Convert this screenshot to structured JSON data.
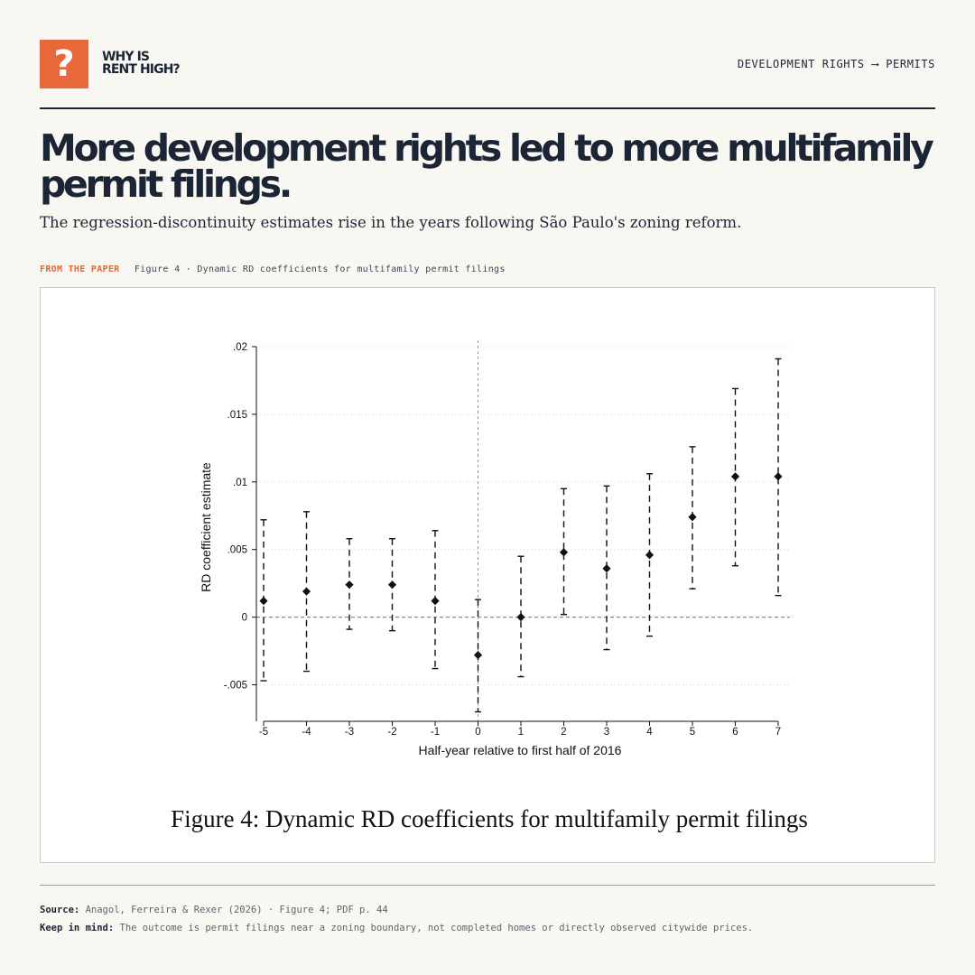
{
  "header": {
    "logo_mark": "?",
    "logo_line1": "WHY IS",
    "logo_line2": "RENT HIGH?",
    "breadcrumb": "DEVELOPMENT RIGHTS ⟶ PERMITS",
    "accent_color": "#e8683c",
    "ink_color": "#1c2536"
  },
  "headline": "More development rights led to more multifamily permit filings.",
  "subtitle": "The regression-discontinuity estimates rise in the years following São Paulo's zoning reform.",
  "source_line": {
    "tag": "FROM THE PAPER",
    "figure_ref": "Figure 4 · Dynamic RD coefficients for multifamily permit filings"
  },
  "chart_data": {
    "type": "scatter",
    "style": "point estimates with dashed confidence-interval bars",
    "marker": "diamond",
    "xlabel": "Half-year relative to first half of 2016",
    "ylabel": "RD coefficient estimate",
    "caption": "Figure 4: Dynamic RD coefficients for multifamily permit filings",
    "x_ticks": [
      "-5",
      "-4",
      "-3",
      "-2",
      "-1",
      "0",
      "1",
      "2",
      "3",
      "4",
      "5",
      "6",
      "7"
    ],
    "y_ticks": [
      {
        "value": -0.005,
        "label": "-.005"
      },
      {
        "value": 0,
        "label": "0"
      },
      {
        "value": 0.005,
        "label": ".005"
      },
      {
        "value": 0.01,
        "label": ".01"
      },
      {
        "value": 0.015,
        "label": ".015"
      },
      {
        "value": 0.02,
        "label": ".02"
      }
    ],
    "xlim": [
      -5,
      7
    ],
    "ylim": [
      -0.0077,
      0.0202
    ],
    "grid": "horizontal dotted",
    "reference_lines": {
      "y": 0,
      "x": 0
    },
    "points": [
      {
        "x": -5,
        "estimate": 0.0012,
        "ci_low": -0.0047,
        "ci_high": 0.0072
      },
      {
        "x": -4,
        "estimate": 0.0019,
        "ci_low": -0.004,
        "ci_high": 0.0078
      },
      {
        "x": -3,
        "estimate": 0.0024,
        "ci_low": -0.0009,
        "ci_high": 0.0058
      },
      {
        "x": -2,
        "estimate": 0.0024,
        "ci_low": -0.001,
        "ci_high": 0.0058
      },
      {
        "x": -1,
        "estimate": 0.0012,
        "ci_low": -0.0038,
        "ci_high": 0.0064
      },
      {
        "x": 0,
        "estimate": -0.0028,
        "ci_low": -0.007,
        "ci_high": 0.0013
      },
      {
        "x": 1,
        "estimate": 0.0,
        "ci_low": -0.0044,
        "ci_high": 0.0045
      },
      {
        "x": 2,
        "estimate": 0.0048,
        "ci_low": 0.0002,
        "ci_high": 0.0095
      },
      {
        "x": 3,
        "estimate": 0.0036,
        "ci_low": -0.0024,
        "ci_high": 0.0097
      },
      {
        "x": 4,
        "estimate": 0.0046,
        "ci_low": -0.0014,
        "ci_high": 0.0106
      },
      {
        "x": 5,
        "estimate": 0.0074,
        "ci_low": 0.0021,
        "ci_high": 0.0126
      },
      {
        "x": 6,
        "estimate": 0.0104,
        "ci_low": 0.0038,
        "ci_high": 0.0169
      },
      {
        "x": 7,
        "estimate": 0.0104,
        "ci_low": 0.0016,
        "ci_high": 0.0191
      }
    ]
  },
  "footer": {
    "source_label": "Source:",
    "source_text": "Anagol, Ferreira & Rexer (2026) · Figure 4; PDF p. 44",
    "keep_label": "Keep in mind:",
    "keep_text": "The outcome is permit filings near a zoning boundary, not completed homes or directly observed citywide prices."
  }
}
